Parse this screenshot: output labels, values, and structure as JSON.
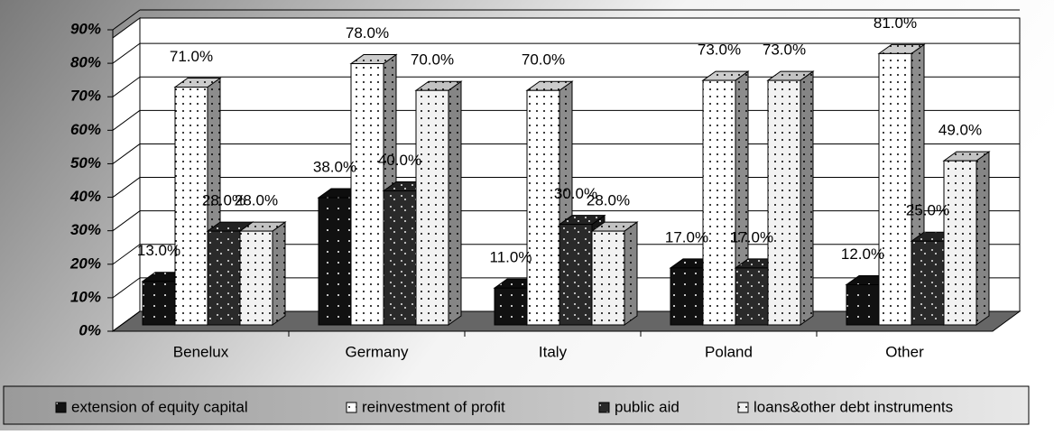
{
  "chart_data": {
    "type": "bar3d",
    "categories": [
      "Benelux",
      "Germany",
      "Italy",
      "Poland",
      "Other"
    ],
    "series": [
      {
        "name": "extension of equity capital",
        "color": "#111111",
        "values": [
          13,
          38,
          11,
          17,
          12
        ],
        "value_labels": [
          "13.0%",
          "38.0%",
          "11.0%",
          "17.0%",
          "12.0%"
        ]
      },
      {
        "name": "reinvestment of profit",
        "color": "#ffffff",
        "values": [
          71,
          78,
          70,
          73,
          81
        ],
        "value_labels": [
          "71.0%",
          "78.0%",
          "70.0%",
          "73.0%",
          "81.0%"
        ]
      },
      {
        "name": "public aid",
        "color": "#2a2a2a",
        "values": [
          28,
          40,
          30,
          17,
          25
        ],
        "value_labels": [
          "28.0%",
          "40.0%",
          "30.0%",
          "17.0%",
          "25.0%"
        ]
      },
      {
        "name": "loans&other debt instruments",
        "color": "#f2f2f2",
        "values": [
          28,
          70,
          28,
          73,
          49
        ],
        "value_labels": [
          "28.0%",
          "70.0%",
          "28.0%",
          "73.0%",
          "49.0%"
        ]
      }
    ],
    "ylim": [
      0,
      90
    ],
    "yticks": [
      {
        "value": 0,
        "label": "0%"
      },
      {
        "value": 10,
        "label": "10%"
      },
      {
        "value": 20,
        "label": "20%"
      },
      {
        "value": 30,
        "label": "30%"
      },
      {
        "value": 40,
        "label": "40%"
      },
      {
        "value": 50,
        "label": "50%"
      },
      {
        "value": 60,
        "label": "60%"
      },
      {
        "value": 70,
        "label": "70%"
      },
      {
        "value": 80,
        "label": "80%"
      },
      {
        "value": 90,
        "label": "90%"
      }
    ],
    "grid": true,
    "legend": "bottom"
  }
}
